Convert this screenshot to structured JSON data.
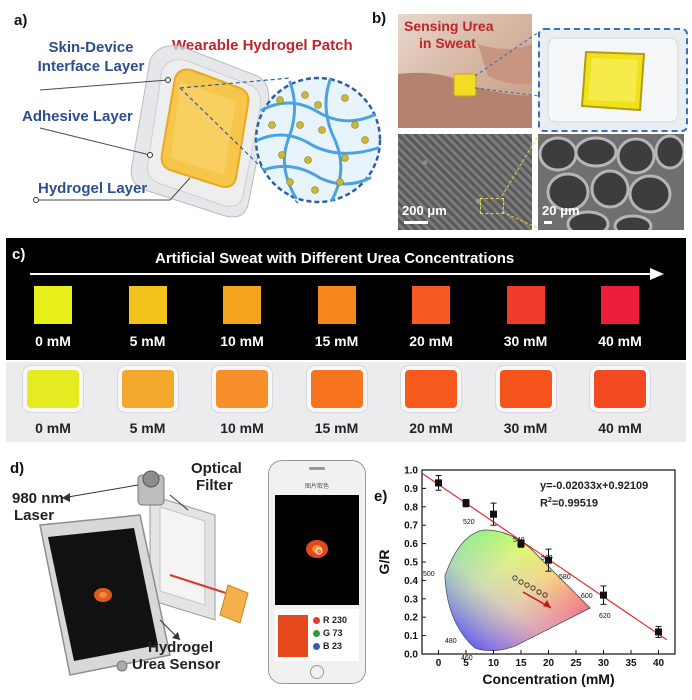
{
  "panel_a": {
    "label": "a)",
    "title": "Wearable Hydrogel Patch",
    "layers": [
      "Skin-Device Interface Layer",
      "Adhesive Layer",
      "Hydrogel Layer"
    ]
  },
  "panel_b": {
    "label": "b)",
    "caption_line1": "Sensing Urea",
    "caption_line2": "in Sweat",
    "scale1": "200 μm",
    "scale2": "20 μm"
  },
  "panel_c": {
    "label": "c)",
    "title": "Artificial Sweat with Different Urea Concentrations",
    "concentrations": [
      "0 mM",
      "5 mM",
      "10 mM",
      "15 mM",
      "20 mM",
      "30 mM",
      "40 mM"
    ],
    "colors": [
      "#e8f01c",
      "#f2c21a",
      "#f5a21c",
      "#f7861e",
      "#f65a22",
      "#f23a2a",
      "#ec1e3a"
    ],
    "gel_colors": [
      "#e6ea20",
      "#f3a82c",
      "#f7902a",
      "#f8741e",
      "#f75a1c",
      "#f5541c",
      "#f44a22"
    ]
  },
  "panel_d": {
    "label": "d)",
    "laser_line1": "980 nm",
    "laser_line2": "Laser",
    "filter_line1": "Optical",
    "filter_line2": "Filter",
    "sensor_line1": "Hydrogel",
    "sensor_line2": "Urea Sensor",
    "phone_header": "图片取色",
    "rgb": [
      {
        "label": "R 230",
        "color": "#e23b2a"
      },
      {
        "label": "G 73",
        "color": "#2e9a3e"
      },
      {
        "label": "B 23",
        "color": "#2f5fbd"
      }
    ],
    "swatch_color": "#e6491c"
  },
  "panel_e": {
    "label": "e)",
    "equation": "y=-0.02033x+0.92109",
    "r2_prefix": "R",
    "r2_sup": "2",
    "r2_value": "=0.99519",
    "cie_labels": [
      "520",
      "540",
      "560",
      "580",
      "600",
      "620",
      "500",
      "480",
      "460"
    ]
  },
  "chart_data": {
    "type": "scatter",
    "title": "",
    "xlabel": "Concentration (mM)",
    "ylabel": "G/R",
    "xlim": [
      -3,
      43
    ],
    "ylim": [
      0.0,
      1.0
    ],
    "xticks": [
      0,
      5,
      10,
      15,
      20,
      25,
      30,
      35,
      40
    ],
    "yticks": [
      0.0,
      0.1,
      0.2,
      0.3,
      0.4,
      0.5,
      0.6,
      0.7,
      0.8,
      0.9,
      1.0
    ],
    "series": [
      {
        "name": "G/R",
        "x": [
          0,
          5,
          10,
          15,
          20,
          30,
          40
        ],
        "y": [
          0.93,
          0.82,
          0.76,
          0.6,
          0.51,
          0.32,
          0.12
        ],
        "err": [
          0.04,
          0.02,
          0.06,
          0.02,
          0.06,
          0.05,
          0.03
        ]
      }
    ],
    "fit": {
      "slope": -0.02033,
      "intercept": 0.92109
    },
    "inset": "CIE 1931 chromaticity diagram with data points trending along the red arrow"
  }
}
